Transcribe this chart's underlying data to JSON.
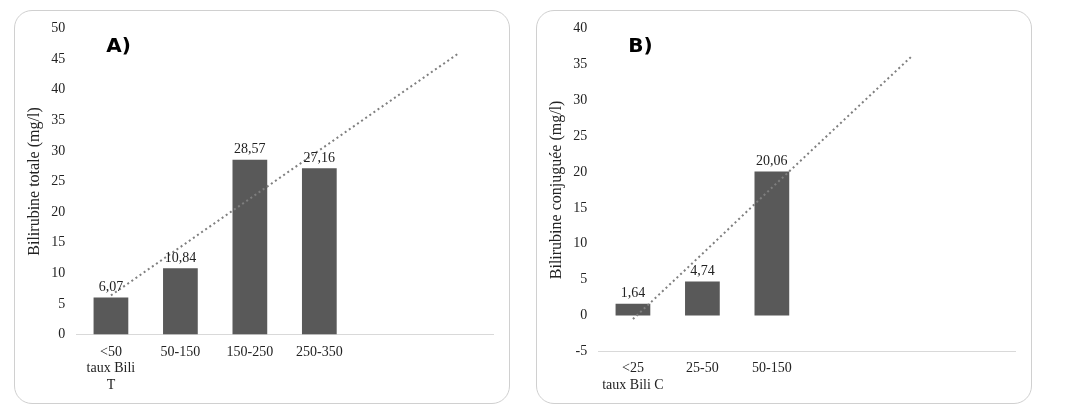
{
  "chart_data": [
    {
      "type": "bar",
      "title": "A)",
      "ylabel": "Bilirubine totale (mg/l)",
      "categories": [
        "<50\ntaux Bili\nT",
        "50-150",
        "150-250",
        "250-350",
        null,
        null
      ],
      "ylim": [
        0,
        50
      ],
      "yticks": [
        0,
        5,
        10,
        15,
        20,
        25,
        30,
        35,
        40,
        45,
        50
      ],
      "grid": false,
      "legend": false,
      "series": [
        {
          "color": "#595959",
          "values": [
            6.07,
            10.84,
            28.57,
            27.16,
            null,
            null
          ],
          "value_labels": [
            "6,07",
            "10,84",
            "28,57",
            "27,16",
            null,
            null
          ]
        },
        {
          "type": "line",
          "color": "#7f7f7f",
          "line_style": "dotted",
          "marker": "none",
          "values": [
            6.4,
            14.3,
            22.2,
            30.1,
            38.0,
            45.9
          ]
        }
      ]
    },
    {
      "type": "bar",
      "title": "B)",
      "ylabel": "Bilirubine conjuguée (mg/l)",
      "categories": [
        "<25\ntaux Bili C",
        "25-50",
        "50-150",
        null,
        null,
        null
      ],
      "ylim": [
        -5,
        40
      ],
      "yticks": [
        -5,
        0,
        5,
        10,
        15,
        20,
        25,
        30,
        35,
        40
      ],
      "grid": false,
      "legend": false,
      "series": [
        {
          "color": "#595959",
          "values": [
            1.64,
            4.74,
            20.06,
            null,
            null,
            null
          ],
          "value_labels": [
            "1,64",
            "4,74",
            "20,06",
            null,
            null,
            null
          ]
        },
        {
          "type": "line",
          "color": "#7f7f7f",
          "line_style": "dotted",
          "marker": "none",
          "values": [
            -0.5,
            8.6,
            17.8,
            26.9,
            36.0,
            null
          ]
        }
      ]
    }
  ]
}
